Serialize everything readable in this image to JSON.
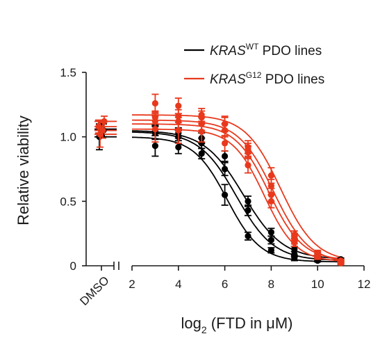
{
  "colors": {
    "wt": "#000000",
    "g12": "#e8391d",
    "axis": "#1a1a1a"
  },
  "chart_data": {
    "type": "line",
    "xlabel": {
      "prefix": "log",
      "sub": "2",
      "suffix": " (FTD in μM)"
    },
    "ylabel": "Relative viability",
    "xlim": [
      2,
      12
    ],
    "ylim": [
      0,
      1.5
    ],
    "xticks": [
      2,
      4,
      6,
      8,
      10,
      12
    ],
    "yticks": [
      {
        "value": 0,
        "label": "0"
      },
      {
        "value": 0.5,
        "label": "0.5"
      },
      {
        "value": 1.0,
        "label": "1.0"
      },
      {
        "value": 1.5,
        "label": "1.5"
      }
    ],
    "dmso_label": "DMSO",
    "legend_position": "top-right",
    "legend": [
      {
        "key": "wt",
        "gene": "KRAS",
        "sup": "WT",
        "text": " PDO lines"
      },
      {
        "key": "g12",
        "gene": "KRAS",
        "sup": "G12",
        "text": " PDO lines"
      }
    ],
    "x": [
      3,
      4,
      5,
      6,
      7,
      8,
      9,
      10,
      11
    ],
    "series": [
      {
        "group": "wt",
        "dmso": 1.0,
        "dmso_err": 0.1,
        "top": 1.0,
        "ec50": 6.1,
        "hill": 2.0,
        "bottom": 0.03,
        "values": [
          0.93,
          0.92,
          0.87,
          0.55,
          0.23,
          0.12,
          0.06,
          0.04,
          0.03
        ],
        "errors": [
          0.08,
          0.05,
          0.04,
          0.08,
          0.03,
          0.02,
          0.02,
          0.01,
          0.01
        ]
      },
      {
        "group": "wt",
        "dmso": 1.05,
        "dmso_err": 0.05,
        "top": 1.04,
        "ec50": 6.5,
        "hill": 1.8,
        "bottom": 0.04,
        "values": [
          1.03,
          1.0,
          0.95,
          0.75,
          0.43,
          0.2,
          0.09,
          0.05,
          0.04
        ],
        "errors": [
          0.05,
          0.05,
          0.04,
          0.05,
          0.04,
          0.03,
          0.02,
          0.01,
          0.01
        ]
      },
      {
        "group": "wt",
        "dmso": 1.06,
        "dmso_err": 0.05,
        "top": 1.05,
        "ec50": 6.8,
        "hill": 1.7,
        "bottom": 0.05,
        "values": [
          1.05,
          1.03,
          0.99,
          0.85,
          0.5,
          0.26,
          0.13,
          0.07,
          0.05
        ],
        "errors": [
          0.04,
          0.04,
          0.04,
          0.04,
          0.04,
          0.03,
          0.02,
          0.01,
          0.01
        ]
      },
      {
        "group": "g12",
        "dmso": 1.02,
        "dmso_err": 0.1,
        "top": 1.06,
        "ec50": 7.7,
        "hill": 2.1,
        "bottom": 0.03,
        "values": [
          1.06,
          1.05,
          1.04,
          0.95,
          0.78,
          0.5,
          0.18,
          0.07,
          0.03
        ],
        "errors": [
          0.1,
          0.1,
          0.08,
          0.06,
          0.06,
          0.05,
          0.03,
          0.02,
          0.01
        ]
      },
      {
        "group": "g12",
        "dmso": 1.05,
        "dmso_err": 0.06,
        "top": 1.1,
        "ec50": 7.9,
        "hill": 2.0,
        "bottom": 0.04,
        "values": [
          1.12,
          1.12,
          1.1,
          1.05,
          0.88,
          0.55,
          0.2,
          0.08,
          0.04
        ],
        "errors": [
          0.06,
          0.06,
          0.05,
          0.05,
          0.05,
          0.05,
          0.03,
          0.02,
          0.01
        ]
      },
      {
        "group": "g12",
        "dmso": 1.08,
        "dmso_err": 0.05,
        "top": 1.13,
        "ec50": 8.1,
        "hill": 1.9,
        "bottom": 0.02,
        "values": [
          1.15,
          1.16,
          1.15,
          1.1,
          0.9,
          0.62,
          0.22,
          0.09,
          0.02
        ],
        "errors": [
          0.05,
          0.05,
          0.05,
          0.05,
          0.05,
          0.05,
          0.03,
          0.02,
          0.01
        ]
      },
      {
        "group": "g12",
        "dmso": 1.12,
        "dmso_err": 0.04,
        "top": 1.17,
        "ec50": 8.4,
        "hill": 1.9,
        "bottom": 0.03,
        "values": [
          1.26,
          1.24,
          1.17,
          1.1,
          0.92,
          0.7,
          0.24,
          0.1,
          0.03
        ],
        "errors": [
          0.07,
          0.06,
          0.05,
          0.06,
          0.05,
          0.06,
          0.03,
          0.02,
          0.01
        ]
      }
    ]
  }
}
